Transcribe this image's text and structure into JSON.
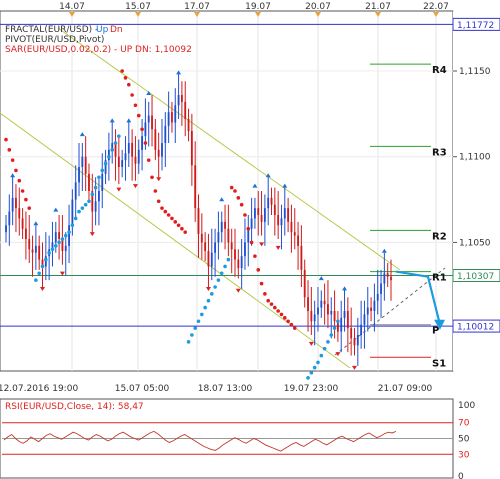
{
  "chart_data": [
    {
      "type": "candlestick",
      "symbol": "EUR/USD",
      "indicator_legend": [
        {
          "text": "FRACTAL(EUR/USD) - ",
          "parts": [
            "Up",
            "Dn"
          ]
        },
        {
          "text": "PIVOT(EUR/USD,Pivot)"
        },
        {
          "text": "SAR(EUR/USD,0.02,0.2) - UP  DN: 1,10092"
        }
      ],
      "top_date_ticks": [
        "14.07",
        "15.07",
        "17.07",
        "19.07",
        "20.07",
        "21.07",
        "22.07"
      ],
      "bottom_time_ticks": [
        "12.07.2016 19:00",
        "15.07 05:00",
        "18.07 13:00",
        "19.07 23:00",
        "21.07 09:00"
      ],
      "y_ticks": [
        "1,1150",
        "1,1100",
        "1,1050"
      ],
      "ylim": [
        1.0975,
        1.1185
      ],
      "price_labels": [
        {
          "text": "1,11772",
          "value": 1.11772,
          "color": "#3333cc"
        },
        {
          "text": "1,10307",
          "value": 1.10307,
          "color": "#2e8b57"
        },
        {
          "text": "1,10012",
          "value": 1.10012,
          "color": "#3333cc"
        }
      ],
      "pivot_levels": [
        {
          "name": "R4",
          "value": 1.1154
        },
        {
          "name": "R3",
          "value": 1.1106
        },
        {
          "name": "R2",
          "value": 1.1057
        },
        {
          "name": "R1",
          "value": 1.1033
        },
        {
          "name": "P",
          "value": 1.1002
        },
        {
          "name": "S1",
          "value": 1.0983
        }
      ],
      "series": [
        {
          "name": "close",
          "values": [
            1.106,
            1.1068,
            1.1076,
            1.107,
            1.1064,
            1.1058,
            1.1052,
            1.1046,
            1.1044,
            1.1048,
            1.104,
            1.1036,
            1.1042,
            1.1046,
            1.105,
            1.1056,
            1.1052,
            1.1045,
            1.1048,
            1.106,
            1.1075,
            1.1085,
            1.1094,
            1.11,
            1.109,
            1.108,
            1.1068,
            1.1074,
            1.108,
            1.109,
            1.1098,
            1.1104,
            1.1108,
            1.11,
            1.1094,
            1.1098,
            1.1102,
            1.1108,
            1.11,
            1.1096,
            1.1104,
            1.1112,
            1.112,
            1.1124,
            1.1116,
            1.1104,
            1.11,
            1.1108,
            1.1118,
            1.1126,
            1.112,
            1.113,
            1.1136,
            1.1132,
            1.1122,
            1.1115,
            1.1095,
            1.107,
            1.1055,
            1.105,
            1.1045,
            1.1036,
            1.1044,
            1.105,
            1.1056,
            1.1062,
            1.1058,
            1.105,
            1.1046,
            1.104,
            1.1035,
            1.1042,
            1.105,
            1.1058,
            1.1064,
            1.107,
            1.1066,
            1.1062,
            1.107,
            1.1076,
            1.1072,
            1.1066,
            1.106,
            1.1064,
            1.107,
            1.1062,
            1.1056,
            1.1054,
            1.1048,
            1.1034,
            1.1018,
            1.101,
            1.1004,
            1.1008,
            1.1012,
            1.1016,
            1.1014,
            1.1008,
            1.101,
            1.1004,
            1.0998,
            1.1006,
            1.101,
            1.1,
            1.0994,
            1.099,
            1.0996,
            1.1002,
            1.1008,
            1.1012,
            1.101,
            1.1016,
            1.102,
            1.1026,
            1.1032,
            1.103,
            1.1028
          ]
        },
        {
          "name": "sar_up",
          "values": [
            null,
            null,
            null,
            null,
            null,
            null,
            null,
            null,
            null,
            1.1028,
            1.1032,
            1.1036,
            1.104,
            1.1044,
            1.1046,
            1.1048,
            1.105,
            1.1052,
            1.1054,
            1.1056,
            1.106,
            1.1064,
            1.1068,
            1.107,
            1.1072,
            1.1074,
            1.1078,
            1.1082,
            1.1088,
            1.1092,
            1.1096,
            1.11,
            1.1104,
            1.1108,
            1.1112,
            null,
            null,
            null,
            null,
            null,
            null,
            null,
            null,
            null,
            null,
            null,
            null,
            null,
            null,
            null,
            null,
            null,
            null,
            null,
            null,
            1.0992,
            1.0996,
            1.1,
            1.1004,
            1.1008,
            1.1012,
            1.1016,
            1.102,
            1.1024,
            1.1028,
            1.1032,
            1.1036,
            1.104,
            null,
            null,
            null,
            null,
            null,
            null,
            null,
            null,
            null,
            null,
            null,
            null,
            null,
            null,
            null,
            null,
            null,
            null,
            null,
            null,
            null,
            null,
            null,
            1.0971,
            1.0974,
            1.0977,
            1.098,
            1.0984,
            1.0988,
            1.0992,
            1.0996,
            1.1,
            1.1004
          ]
        },
        {
          "name": "sar_dn",
          "values": [
            1.111,
            1.1104,
            1.1098,
            1.1092,
            1.1086,
            1.108,
            1.1075,
            1.107,
            null,
            null,
            null,
            null,
            null,
            null,
            null,
            null,
            null,
            null,
            null,
            null,
            null,
            null,
            null,
            null,
            null,
            null,
            null,
            null,
            null,
            null,
            null,
            null,
            null,
            null,
            null,
            1.115,
            1.1146,
            1.1142,
            1.1136,
            1.113,
            1.1124,
            1.1116,
            1.1108,
            1.1098,
            1.1088,
            1.108,
            1.1074,
            1.107,
            1.1068,
            1.1066,
            1.1064,
            1.1062,
            1.106,
            1.1058,
            1.1056,
            null,
            null,
            null,
            null,
            null,
            null,
            null,
            null,
            null,
            null,
            null,
            null,
            null,
            1.1082,
            1.108,
            1.1076,
            1.1072,
            1.1066,
            1.1058,
            1.105,
            1.1042,
            1.1034,
            1.1026,
            1.102,
            1.1016,
            1.1014,
            1.1012,
            1.101,
            1.1008,
            1.1006,
            1.1004,
            1.1002,
            1.1,
            null,
            null,
            null,
            null,
            null,
            null,
            null,
            null,
            null,
            null,
            null
          ]
        }
      ],
      "forecast_arrow": [
        {
          "value": 1.1033
        },
        {
          "value": 1.103
        },
        {
          "value": 1.1002
        }
      ]
    },
    {
      "type": "line",
      "title": "RSI(EUR/USD,Close, 14): 58,47",
      "ylim": [
        0,
        100
      ],
      "y_ticks": [
        "100",
        "70",
        "50",
        "30",
        "0"
      ],
      "levels": [
        70,
        50,
        30
      ],
      "series": [
        {
          "name": "RSI",
          "values": [
            48,
            52,
            55,
            50,
            46,
            44,
            47,
            52,
            49,
            46,
            50,
            54,
            56,
            53,
            51,
            49,
            52,
            55,
            58,
            56,
            53,
            50,
            48,
            52,
            55,
            53,
            50,
            47,
            49,
            53,
            56,
            58,
            55,
            52,
            50,
            48,
            51,
            54,
            57,
            59,
            56,
            52,
            48,
            45,
            47,
            50,
            53,
            55,
            52,
            49,
            46,
            43,
            40,
            38,
            36,
            35,
            38,
            42,
            45,
            48,
            51,
            49,
            46,
            44,
            47,
            50,
            48,
            45,
            42,
            40,
            38,
            36,
            34,
            37,
            40,
            43,
            45,
            42,
            40,
            43,
            46,
            49,
            47,
            44,
            42,
            45,
            48,
            51,
            53,
            50,
            48,
            46,
            49,
            52,
            55,
            57,
            54,
            51,
            53,
            56,
            58,
            57,
            59
          ]
        }
      ]
    }
  ]
}
